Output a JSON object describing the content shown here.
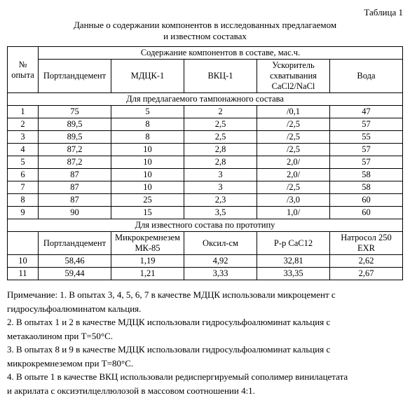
{
  "table_label": "Таблица 1",
  "title_line1": "Данные о содержании компонентов в исследованных предлагаемом",
  "title_line2": "и  известном составах",
  "header": {
    "num": "№ опыта",
    "group": "Содержание компонентов в составе, мас.ч.",
    "c1": "Портландцемент",
    "c2": "МДЦК-1",
    "c3": "ВКЦ-1",
    "c4": "Ускоритель схватывания CaCl2/NaCl",
    "c5": "Вода"
  },
  "section1": "Для предлагаемого тампонажного состава",
  "rows1": [
    {
      "n": "1",
      "c1": "75",
      "c2": "5",
      "c3": "2",
      "c4": "/0,1",
      "c5": "47"
    },
    {
      "n": "2",
      "c1": "89,5",
      "c2": "8",
      "c3": "2,5",
      "c4": "/2,5",
      "c5": "57"
    },
    {
      "n": "3",
      "c1": "89,5",
      "c2": "8",
      "c3": "2,5",
      "c4": "/2,5",
      "c5": "55"
    },
    {
      "n": "4",
      "c1": "87,2",
      "c2": "10",
      "c3": "2,8",
      "c4": "/2,5",
      "c5": "57"
    },
    {
      "n": "5",
      "c1": "87,2",
      "c2": "10",
      "c3": "2,8",
      "c4": "2,0/",
      "c5": "57"
    },
    {
      "n": "6",
      "c1": "87",
      "c2": "10",
      "c3": "3",
      "c4": "2,0/",
      "c5": "58"
    },
    {
      "n": "7",
      "c1": "87",
      "c2": "10",
      "c3": "3",
      "c4": "/2,5",
      "c5": "58"
    },
    {
      "n": "8",
      "c1": "87",
      "c2": "25",
      "c3": "2,3",
      "c4": "/3,0",
      "c5": "60"
    },
    {
      "n": "9",
      "c1": "90",
      "c2": "15",
      "c3": "3,5",
      "c4": "1,0/",
      "c5": "60"
    }
  ],
  "section2": "Для известного состава по прототипу",
  "header2": {
    "c1": "Портландцемент",
    "c2": "Микрокремнезем МК-85",
    "c3": "Оксил-см",
    "c4": "Р-р CaC12",
    "c5": "Натросол 250 EXR"
  },
  "rows2": [
    {
      "n": "10",
      "c1": "58,46",
      "c2": "1,19",
      "c3": "4,92",
      "c4": "32,81",
      "c5": "2,62"
    },
    {
      "n": "11",
      "c1": "59,44",
      "c2": "1,21",
      "c3": "3,33",
      "c4": "33,35",
      "c5": "2,67"
    }
  ],
  "notes": {
    "n1a": "Примечание: 1. В опытах 3, 4, 5, 6, 7 в качестве МДЦК использовали микроцемент с",
    "n1b": "гидросульфоалюминатом кальция.",
    "n2a": "2. В опытах 1 и 2  в качестве МДЦК использовали гидросульфоалюминат  кальция с",
    "n2b": "метакаолином при Т=50°С.",
    "n3a": "3. В опытах 8 и 9  в качестве МДЦК использовали гидросульфоалюминат  кальция с",
    "n3b": "микрокремнеземом при Т=80°С.",
    "n4a": "4. В опыте 1 в качестве ВКЦ использовали редиспергируемый сополимер винилацетата",
    "n4b": "и акрилата с оксиэтилцеллюлозой в массовом соотношении 4:1."
  }
}
